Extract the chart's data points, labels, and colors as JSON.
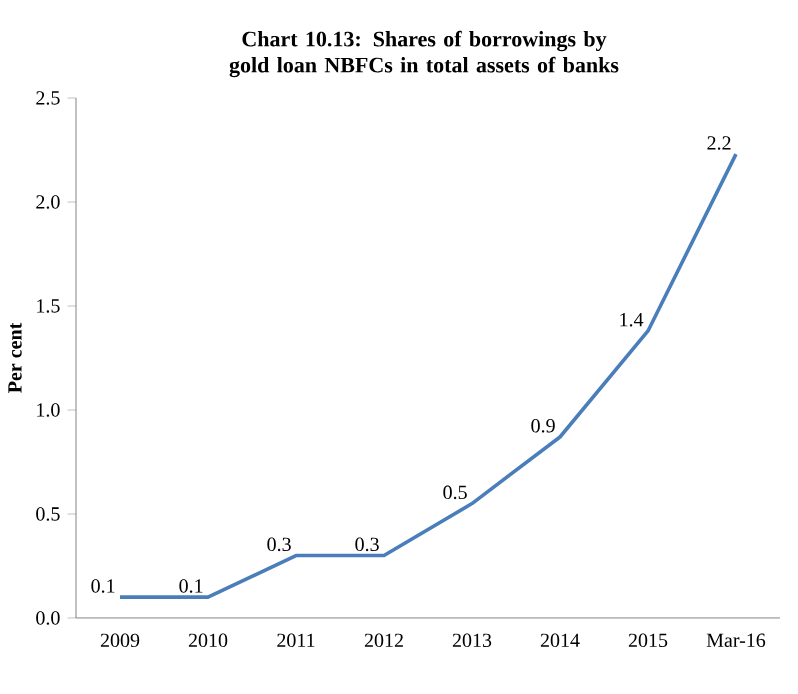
{
  "chart_data": {
    "type": "line",
    "title": "Chart  10.13: Shares of borrowings by gold loan NBFCs in total assets of banks",
    "ylabel": "Per cent",
    "categories": [
      "2009",
      "2010",
      "2011",
      "2012",
      "2013",
      "2014",
      "2015",
      "Mar-16"
    ],
    "values": [
      0.1,
      0.1,
      0.3,
      0.3,
      0.55,
      0.87,
      1.38,
      2.23
    ],
    "value_labels": [
      "0.1",
      "0.1",
      "0.3",
      "0.3",
      "0.5",
      "0.9",
      "1.4",
      "2.2"
    ],
    "color": "#4a7ebb",
    "ylim": [
      0,
      2.5
    ],
    "yticks": [
      {
        "value": 0,
        "label": "0.0"
      },
      {
        "value": 0.5,
        "label": "0.5"
      },
      {
        "value": 1,
        "label": "1.0"
      },
      {
        "value": 1.5,
        "label": "1.5"
      },
      {
        "value": 2,
        "label": "2.0"
      },
      {
        "value": 2.5,
        "label": "2.5"
      }
    ],
    "grid": false,
    "marker": "none",
    "line_style": "solid"
  }
}
